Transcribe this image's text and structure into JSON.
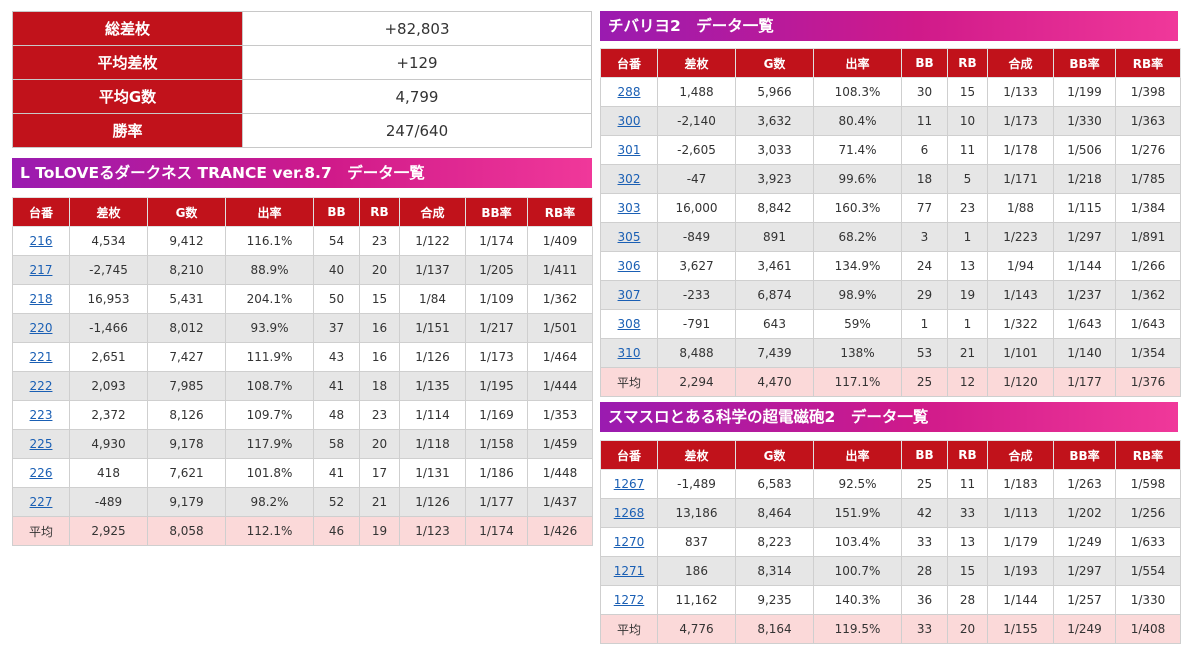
{
  "summary": {
    "rows": [
      {
        "label": "総差枚",
        "value": "+82,803"
      },
      {
        "label": "平均差枚",
        "value": "+129"
      },
      {
        "label": "平均G数",
        "value": "4,799"
      },
      {
        "label": "勝率",
        "value": "247/640"
      }
    ]
  },
  "headers": [
    "台番",
    "差枚",
    "G数",
    "出率",
    "BB",
    "RB",
    "合成",
    "BB率",
    "RB率"
  ],
  "avg_label": "平均",
  "tables": [
    {
      "title": "L ToLOVEるダークネス TRANCE ver.8.7　データ一覧",
      "rows": [
        [
          "216",
          "4,534",
          "9,412",
          "116.1%",
          "54",
          "23",
          "1/122",
          "1/174",
          "1/409"
        ],
        [
          "217",
          "-2,745",
          "8,210",
          "88.9%",
          "40",
          "20",
          "1/137",
          "1/205",
          "1/411"
        ],
        [
          "218",
          "16,953",
          "5,431",
          "204.1%",
          "50",
          "15",
          "1/84",
          "1/109",
          "1/362"
        ],
        [
          "220",
          "-1,466",
          "8,012",
          "93.9%",
          "37",
          "16",
          "1/151",
          "1/217",
          "1/501"
        ],
        [
          "221",
          "2,651",
          "7,427",
          "111.9%",
          "43",
          "16",
          "1/126",
          "1/173",
          "1/464"
        ],
        [
          "222",
          "2,093",
          "7,985",
          "108.7%",
          "41",
          "18",
          "1/135",
          "1/195",
          "1/444"
        ],
        [
          "223",
          "2,372",
          "8,126",
          "109.7%",
          "48",
          "23",
          "1/114",
          "1/169",
          "1/353"
        ],
        [
          "225",
          "4,930",
          "9,178",
          "117.9%",
          "58",
          "20",
          "1/118",
          "1/158",
          "1/459"
        ],
        [
          "226",
          "418",
          "7,621",
          "101.8%",
          "41",
          "17",
          "1/131",
          "1/186",
          "1/448"
        ],
        [
          "227",
          "-489",
          "9,179",
          "98.2%",
          "52",
          "21",
          "1/126",
          "1/177",
          "1/437"
        ]
      ],
      "avg": [
        "2,925",
        "8,058",
        "112.1%",
        "46",
        "19",
        "1/123",
        "1/174",
        "1/426"
      ]
    },
    {
      "title": "チバリヨ2　データ一覧",
      "rows": [
        [
          "288",
          "1,488",
          "5,966",
          "108.3%",
          "30",
          "15",
          "1/133",
          "1/199",
          "1/398"
        ],
        [
          "300",
          "-2,140",
          "3,632",
          "80.4%",
          "11",
          "10",
          "1/173",
          "1/330",
          "1/363"
        ],
        [
          "301",
          "-2,605",
          "3,033",
          "71.4%",
          "6",
          "11",
          "1/178",
          "1/506",
          "1/276"
        ],
        [
          "302",
          "-47",
          "3,923",
          "99.6%",
          "18",
          "5",
          "1/171",
          "1/218",
          "1/785"
        ],
        [
          "303",
          "16,000",
          "8,842",
          "160.3%",
          "77",
          "23",
          "1/88",
          "1/115",
          "1/384"
        ],
        [
          "305",
          "-849",
          "891",
          "68.2%",
          "3",
          "1",
          "1/223",
          "1/297",
          "1/891"
        ],
        [
          "306",
          "3,627",
          "3,461",
          "134.9%",
          "24",
          "13",
          "1/94",
          "1/144",
          "1/266"
        ],
        [
          "307",
          "-233",
          "6,874",
          "98.9%",
          "29",
          "19",
          "1/143",
          "1/237",
          "1/362"
        ],
        [
          "308",
          "-791",
          "643",
          "59%",
          "1",
          "1",
          "1/322",
          "1/643",
          "1/643"
        ],
        [
          "310",
          "8,488",
          "7,439",
          "138%",
          "53",
          "21",
          "1/101",
          "1/140",
          "1/354"
        ]
      ],
      "avg": [
        "2,294",
        "4,470",
        "117.1%",
        "25",
        "12",
        "1/120",
        "1/177",
        "1/376"
      ]
    },
    {
      "title": "スマスロとある科学の超電磁砲2　データ一覧",
      "rows": [
        [
          "1267",
          "-1,489",
          "6,583",
          "92.5%",
          "25",
          "11",
          "1/183",
          "1/263",
          "1/598"
        ],
        [
          "1268",
          "13,186",
          "8,464",
          "151.9%",
          "42",
          "33",
          "1/113",
          "1/202",
          "1/256"
        ],
        [
          "1270",
          "837",
          "8,223",
          "103.4%",
          "33",
          "13",
          "1/179",
          "1/249",
          "1/633"
        ],
        [
          "1271",
          "186",
          "8,314",
          "100.7%",
          "28",
          "15",
          "1/193",
          "1/297",
          "1/554"
        ],
        [
          "1272",
          "11,162",
          "9,235",
          "140.3%",
          "36",
          "28",
          "1/144",
          "1/257",
          "1/330"
        ]
      ],
      "avg": [
        "4,776",
        "8,164",
        "119.5%",
        "33",
        "20",
        "1/155",
        "1/249",
        "1/408"
      ]
    }
  ]
}
